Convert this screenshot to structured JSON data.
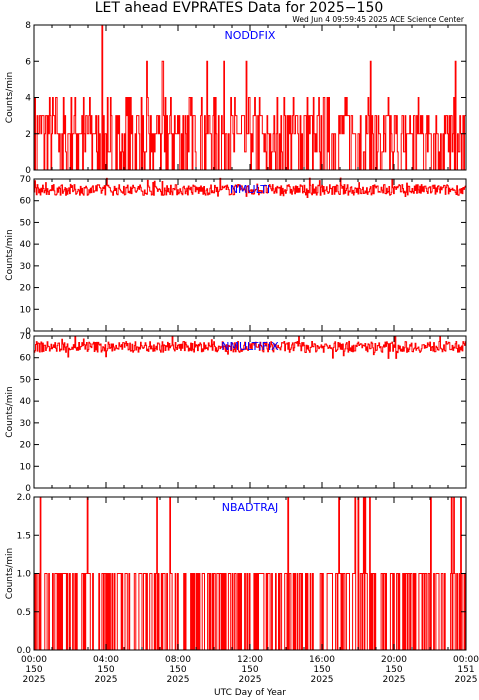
{
  "title": "LET ahead EVPRATES Data for 2025−150",
  "subtitle": "Wed Jun  4 09:59:45 2025 ACE Science Center",
  "colors": {
    "data": "#ff0000",
    "label": "#0000ff",
    "axis": "#000000"
  },
  "chart_data": [
    {
      "type": "line",
      "title": "NODDFIX",
      "ylabel": "Counts/min",
      "ylim": [
        0,
        8
      ],
      "yticks": [
        "0",
        "2",
        "4",
        "6",
        "8"
      ],
      "xlim": [
        0,
        24
      ],
      "series": [
        {
          "values_summary": "1-minute counts fluctuating between 0 and 4, occasional spikes to 6 and 8"
        }
      ]
    },
    {
      "type": "line",
      "title": "NMULTI",
      "ylabel": "Counts/min",
      "ylim": [
        0,
        70
      ],
      "yticks": [
        "0",
        "10",
        "20",
        "30",
        "40",
        "50",
        "60",
        "70"
      ],
      "xlim": [
        0,
        24
      ],
      "series": [
        {
          "values_summary": "steady near 65 counts/min, range ~62-69"
        }
      ]
    },
    {
      "type": "line",
      "title": "NMULTIFIX",
      "ylabel": "Counts/min",
      "ylim": [
        0,
        70
      ],
      "yticks": [
        "0",
        "10",
        "20",
        "30",
        "40",
        "50",
        "60",
        "70"
      ],
      "xlim": [
        0,
        24
      ],
      "series": [
        {
          "values_summary": "steady near 65 counts/min, range ~62-69"
        }
      ]
    },
    {
      "type": "line",
      "title": "NBADTRAJ",
      "ylabel": "Counts/min",
      "ylim": [
        0,
        2
      ],
      "yticks": [
        "0.0",
        "0.5",
        "1.0",
        "1.5",
        "2.0"
      ],
      "xlim": [
        0,
        24
      ],
      "series": [
        {
          "values_summary": "mostly 0 or 1 counts/min with sparse spikes to 2"
        }
      ]
    }
  ],
  "xaxis": {
    "label": "UTC Day of Year",
    "ticks": [
      {
        "time": "00:00",
        "doy": "150",
        "year": "2025"
      },
      {
        "time": "04:00",
        "doy": "150",
        "year": "2025"
      },
      {
        "time": "08:00",
        "doy": "150",
        "year": "2025"
      },
      {
        "time": "12:00",
        "doy": "150",
        "year": "2025"
      },
      {
        "time": "16:00",
        "doy": "150",
        "year": "2025"
      },
      {
        "time": "20:00",
        "doy": "150",
        "year": "2025"
      },
      {
        "time": "00:00",
        "doy": "151",
        "year": "2025"
      }
    ]
  }
}
